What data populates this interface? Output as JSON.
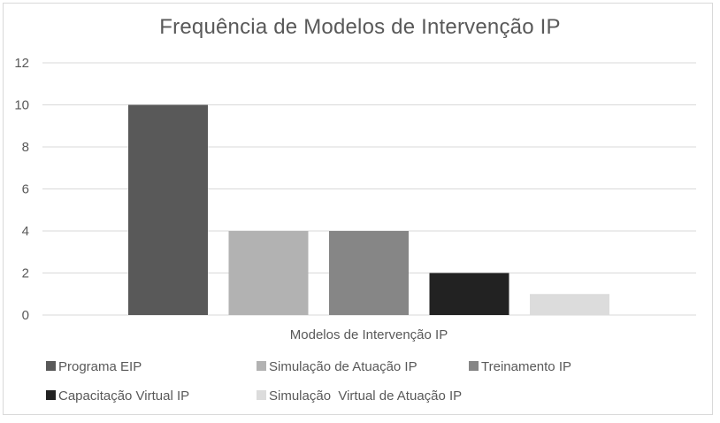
{
  "chart_data": {
    "type": "bar",
    "title": "Frequência de Modelos de Intervenção IP",
    "xlabel": "Modelos de Intervenção IP",
    "ylabel": "",
    "ylim": [
      0,
      12
    ],
    "yticks": [
      0,
      2,
      4,
      6,
      8,
      10,
      12
    ],
    "grid": true,
    "legend_position": "bottom",
    "series": [
      {
        "name": "Programa EIP",
        "value": 10,
        "color": "#595959"
      },
      {
        "name": "Simulação de Atuação IP",
        "value": 4,
        "color": "#b2b2b2"
      },
      {
        "name": "Treinamento IP",
        "value": 4,
        "color": "#868686"
      },
      {
        "name": "Capacitação Virtual IP",
        "value": 2,
        "color": "#222222"
      },
      {
        "name": "Simulação  Virtual de Atuação IP",
        "value": 1,
        "color": "#dcdcdc"
      }
    ]
  }
}
